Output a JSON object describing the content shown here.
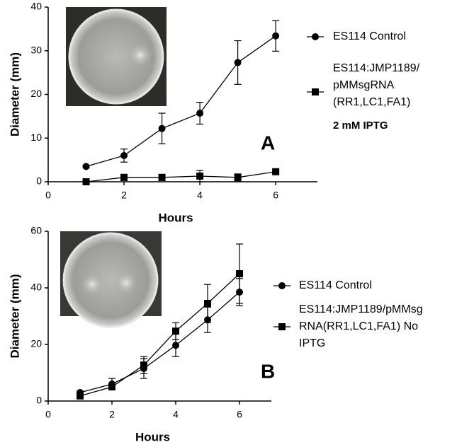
{
  "chart_data": [
    {
      "type": "line",
      "xlabel": "Hours",
      "ylabel": "Diameter (mm)",
      "x": [
        1,
        2,
        3,
        4,
        5,
        6
      ],
      "series": [
        {
          "name": "ES114 Control",
          "marker": "circle",
          "color": "#000000",
          "values": [
            3.5,
            6,
            12.2,
            15.7,
            27.3,
            33.4
          ],
          "errors": [
            0.3,
            1.5,
            3.5,
            2.5,
            5,
            3.5
          ]
        },
        {
          "name": "ES114:JMP1189/\npMMsgRNA\n(RR1,LC1,FA1)",
          "marker": "square",
          "color": "#000000",
          "values": [
            0,
            1,
            1,
            1.3,
            1,
            2.3
          ],
          "errors": [
            0.3,
            0.7,
            0.7,
            1.3,
            0.8,
            0.3
          ]
        }
      ],
      "xlim": [
        0,
        7.1
      ],
      "xticks": [
        0,
        2,
        4,
        6
      ],
      "ylim": [
        0,
        40
      ],
      "yticks": [
        0,
        10,
        20,
        30,
        40
      ],
      "annotations": [
        "2 mM IPTG",
        "A"
      ]
    },
    {
      "type": "line",
      "xlabel": "Hours",
      "ylabel": "Diameter (mm)",
      "x": [
        1,
        2,
        3,
        4,
        5,
        6
      ],
      "series": [
        {
          "name": "ES114 Control",
          "marker": "circle",
          "color": "#000000",
          "values": [
            3,
            6,
            11.5,
            19.7,
            28.7,
            38.5
          ],
          "errors": [
            0.5,
            2,
            3.5,
            4,
            4.5,
            4.8
          ]
        },
        {
          "name": "ES114:JMP1189/pMMsg\nRNA(RR1,LC1,FA1) No\nIPTG",
          "marker": "square",
          "color": "#000000",
          "values": [
            1.8,
            5,
            12.7,
            24.7,
            34.5,
            45
          ],
          "errors": [
            0.5,
            1,
            3,
            3,
            6.7,
            10.5
          ]
        }
      ],
      "xlim": [
        0,
        7
      ],
      "xticks": [
        0,
        2,
        4,
        6
      ],
      "ylim": [
        0,
        60
      ],
      "yticks": [
        0,
        20,
        40,
        60
      ],
      "annotations": [
        "B"
      ]
    }
  ]
}
